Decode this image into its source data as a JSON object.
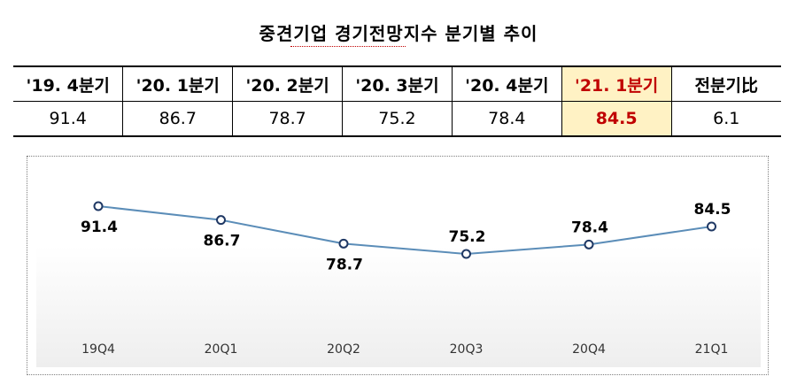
{
  "title": "중견기업 경기전망지수 분기별 추이",
  "table": {
    "headers": [
      "'19. 4분기",
      "'20. 1분기",
      "'20. 2분기",
      "'20. 3분기",
      "'20. 4분기",
      "'21. 1분기",
      "전분기比"
    ],
    "values": [
      "91.4",
      "86.7",
      "78.7",
      "75.2",
      "78.4",
      "84.5",
      "6.1"
    ],
    "highlight_color": "#fff2c4",
    "highlight_text_color": "#c00000"
  },
  "chart_data": {
    "type": "line",
    "title": "",
    "xlabel": "",
    "ylabel": "",
    "categories": [
      "19Q4",
      "20Q1",
      "20Q2",
      "20Q3",
      "20Q4",
      "21Q1"
    ],
    "series": [
      {
        "name": "",
        "values": [
          91.4,
          86.7,
          78.7,
          75.2,
          78.4,
          84.5
        ]
      }
    ],
    "data_labels": [
      "91.4",
      "86.7",
      "78.7",
      "75.2",
      "78.4",
      "84.5"
    ],
    "ylim": [
      60,
      100
    ],
    "grid": false,
    "line_color": "#5b8db8",
    "marker_edge_color": "#1f3864"
  }
}
